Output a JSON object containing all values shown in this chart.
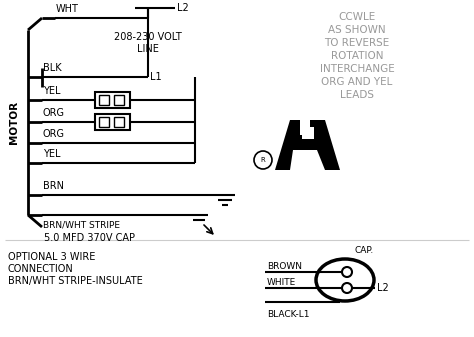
{
  "bg_color": "#ffffff",
  "line_color": "#000000",
  "ccwle_lines": [
    "CCWLE",
    "AS SHOWN",
    "TO REVERSE",
    "ROTATION",
    "INTERCHANGE",
    "ORG AND YEL",
    "LEADS"
  ],
  "optional_line1": "OPTIONAL 3 WIRE",
  "optional_line2": "CONNECTION",
  "optional_line3": "BRN/WHT STRIPE-INSULATE",
  "volt_line1": "208-230 VOLT",
  "volt_line2": "LINE",
  "cap_label": "5.0 MFD 370V CAP",
  "motor_label": "MOTOR",
  "cap_top": "CAP.",
  "l2_label": "L2",
  "l1_label": "L1",
  "brown_label": "BROWN",
  "white_label": "WHITE",
  "black_l1_label": "BLACK-L1"
}
